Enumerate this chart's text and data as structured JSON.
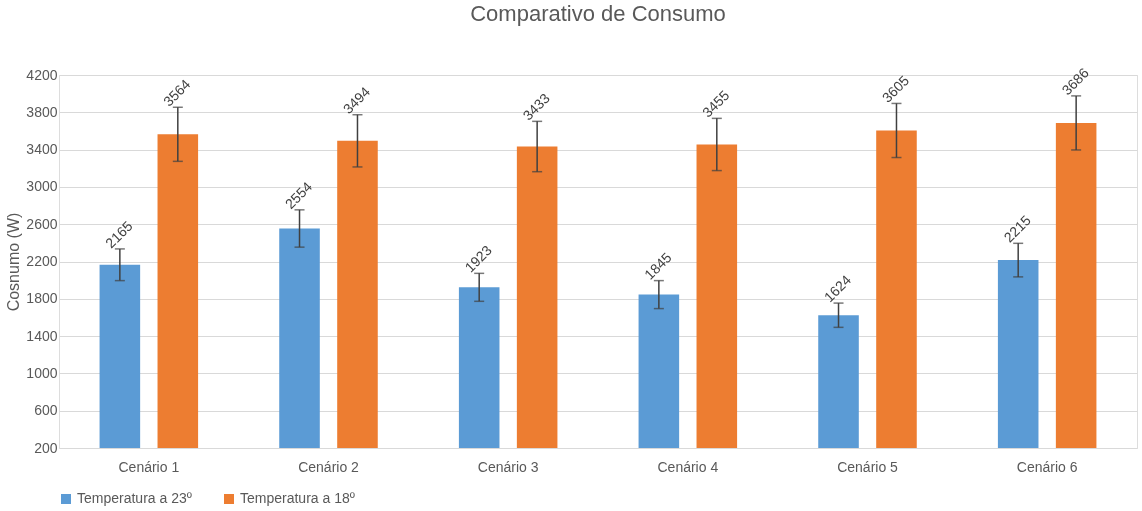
{
  "chart_data": {
    "type": "bar",
    "title": "Comparativo de Consumo",
    "ylabel": "Cosnumo (W)",
    "categories": [
      "Cenário 1",
      "Cenário 2",
      "Cenário 3",
      "Cenário 4",
      "Cenário 5",
      "Cenário 6"
    ],
    "series": [
      {
        "name": "Temperatura a 23º",
        "color": "#5b9bd5",
        "values": [
          2165,
          2554,
          1923,
          1845,
          1624,
          2215
        ],
        "errors": [
          170,
          200,
          150,
          150,
          130,
          180
        ]
      },
      {
        "name": "Temperatura a 18º",
        "color": "#ed7d31",
        "values": [
          3564,
          3494,
          3433,
          3455,
          3605,
          3686
        ],
        "errors": [
          290,
          280,
          270,
          280,
          290,
          290
        ]
      }
    ],
    "ylim": [
      200,
      4200
    ],
    "yticks": [
      200,
      600,
      1000,
      1400,
      1800,
      2200,
      2600,
      3000,
      3400,
      3800,
      4200
    ],
    "grid": "y",
    "legend": "bottom",
    "data_labels": true
  }
}
